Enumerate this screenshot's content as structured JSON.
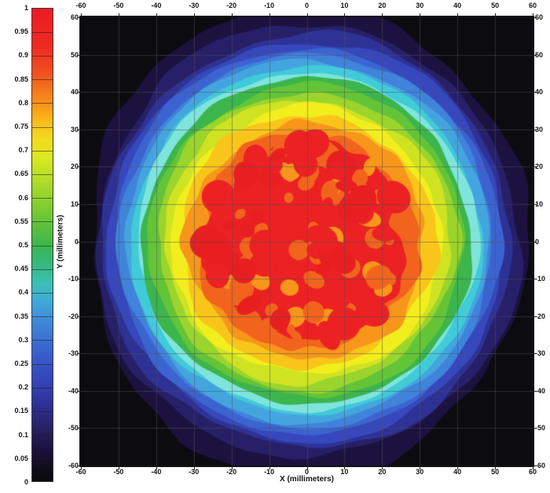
{
  "colorbar": {
    "range": [
      0,
      1
    ],
    "tick_labels": [
      "1",
      "0.95",
      "0.9",
      "0.85",
      "0.8",
      "0.75",
      "0.7",
      "0.65",
      "0.6",
      "0.55",
      "0.5",
      "0.45",
      "0.4",
      "0.35",
      "0.3",
      "0.25",
      "0.2",
      "0.15",
      "0.1",
      "0.05",
      "0"
    ],
    "gradient_stops": [
      {
        "v": 1.0,
        "c": "#ec1c24"
      },
      {
        "v": 0.92,
        "c": "#ed2a22"
      },
      {
        "v": 0.86,
        "c": "#f0541f"
      },
      {
        "v": 0.8,
        "c": "#f6921b"
      },
      {
        "v": 0.76,
        "c": "#f9bd1c"
      },
      {
        "v": 0.72,
        "c": "#f2dd1e"
      },
      {
        "v": 0.68,
        "c": "#d7e822"
      },
      {
        "v": 0.62,
        "c": "#a2d82a"
      },
      {
        "v": 0.56,
        "c": "#6dc634"
      },
      {
        "v": 0.5,
        "c": "#3cb54c"
      },
      {
        "v": 0.46,
        "c": "#36b87e"
      },
      {
        "v": 0.42,
        "c": "#3bc0b4"
      },
      {
        "v": 0.38,
        "c": "#41a8d8"
      },
      {
        "v": 0.34,
        "c": "#3f8ad8"
      },
      {
        "v": 0.28,
        "c": "#3a64cc"
      },
      {
        "v": 0.22,
        "c": "#3547bb"
      },
      {
        "v": 0.16,
        "c": "#2e3095"
      },
      {
        "v": 0.11,
        "c": "#27205f"
      },
      {
        "v": 0.06,
        "c": "#1a1038"
      },
      {
        "v": 0.02,
        "c": "#0d0c14"
      },
      {
        "v": 0.0,
        "c": "#0a0a0e"
      }
    ]
  },
  "chart_data": {
    "type": "heatmap",
    "subtype": "filled contour map of normalized intensity, circular beam profile",
    "title": "",
    "xlabel": "X (millimeters)",
    "ylabel": "Y (millimeters)",
    "xlim": [
      -60,
      60
    ],
    "ylim": [
      -60,
      60
    ],
    "xticks": [
      -60,
      -50,
      -40,
      -30,
      -20,
      -10,
      0,
      10,
      20,
      30,
      40,
      50,
      60
    ],
    "yticks": [
      60,
      50,
      40,
      30,
      20,
      10,
      0,
      -10,
      -20,
      -30,
      -40,
      -50,
      -60
    ],
    "grid": true,
    "grid_color": "rgba(78,78,88,0.5)",
    "background_color": "#0c0c10",
    "colorbar_range": [
      0,
      1
    ],
    "legend_position": "colorbar-left",
    "contour_levels": [
      {
        "level": 0.05,
        "radius_mm": 58.0,
        "color": "#1c1240",
        "wobble": 2.4,
        "stretch_y": 1.09
      },
      {
        "level": 0.1,
        "radius_mm": 56.2,
        "color": "#272068",
        "wobble": 2.0,
        "stretch_y": 1.03
      },
      {
        "level": 0.15,
        "radius_mm": 54.3,
        "color": "#2e3295",
        "wobble": 1.8,
        "stretch_y": 1.02
      },
      {
        "level": 0.2,
        "radius_mm": 52.5,
        "color": "#3648bc",
        "wobble": 1.6,
        "stretch_y": 1.02
      },
      {
        "level": 0.25,
        "radius_mm": 51.0,
        "color": "#3c64d0",
        "wobble": 1.5,
        "stretch_y": 1.01
      },
      {
        "level": 0.3,
        "radius_mm": 49.6,
        "color": "#4083da",
        "wobble": 1.4,
        "stretch_y": 1.01
      },
      {
        "level": 0.35,
        "radius_mm": 48.1,
        "color": "#44a5de",
        "wobble": 1.3,
        "stretch_y": 1.01
      },
      {
        "level": 0.4,
        "radius_mm": 46.6,
        "color": "#41cad8",
        "wobble": 1.3,
        "stretch_y": 1.0
      },
      {
        "level": 0.45,
        "radius_mm": 45.2,
        "color": "#7fe4dc",
        "wobble": 1.2,
        "stretch_y": 1.0
      },
      {
        "level": 0.5,
        "radius_mm": 43.8,
        "color": "#3db54d",
        "wobble": 1.3,
        "stretch_y": 1.0
      },
      {
        "level": 0.55,
        "radius_mm": 41.9,
        "color": "#64c438",
        "wobble": 1.4,
        "stretch_y": 1.0
      },
      {
        "level": 0.6,
        "radius_mm": 39.9,
        "color": "#9ad42d",
        "wobble": 1.5,
        "stretch_y": 1.0
      },
      {
        "level": 0.65,
        "radius_mm": 37.9,
        "color": "#cfe323",
        "wobble": 1.6,
        "stretch_y": 1.0
      },
      {
        "level": 0.7,
        "radius_mm": 35.9,
        "color": "#f2ee1d",
        "wobble": 1.7,
        "stretch_y": 1.0
      },
      {
        "level": 0.75,
        "radius_mm": 33.9,
        "color": "#f9c51b",
        "wobble": 1.9,
        "stretch_y": 1.0
      },
      {
        "level": 0.8,
        "radius_mm": 31.6,
        "color": "#f7961b",
        "wobble": 2.2,
        "stretch_y": 1.0
      },
      {
        "level": 0.85,
        "radius_mm": 29.0,
        "color": "#f2641e",
        "wobble": 2.6,
        "stretch_y": 1.0
      },
      {
        "level": 0.9,
        "radius_mm": 26.2,
        "color": "#ec2123",
        "wobble": 3.2,
        "stretch_y": 1.0
      }
    ],
    "mottle": {
      "seed": 7,
      "inner_blobs": {
        "count": 75,
        "max_radius_mm": 26,
        "size_mm": [
          1.2,
          3.6
        ],
        "colors": [
          "#f2641e",
          "#f7961b",
          "#f2641e"
        ]
      },
      "cover_blobs": {
        "count": 45,
        "max_radius_mm": 27,
        "size_mm": [
          1.8,
          4.6
        ],
        "colors": [
          "#ec2123",
          "#e81f21"
        ]
      }
    }
  }
}
